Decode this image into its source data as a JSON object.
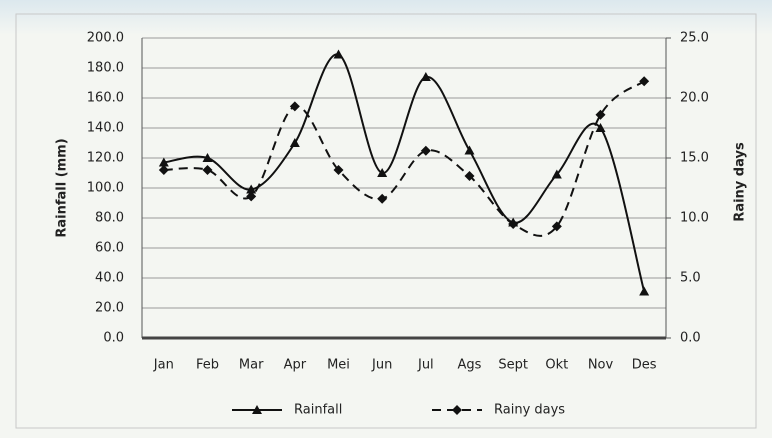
{
  "chart_data": {
    "type": "line",
    "categories": [
      "Jan",
      "Feb",
      "Mar",
      "Apr",
      "Mei",
      "Jun",
      "Jul",
      "Ags",
      "Sept",
      "Okt",
      "Nov",
      "Des"
    ],
    "ylabel": "Rainfall (mm)",
    "y2label": "Rainy days",
    "ylim": [
      0,
      200
    ],
    "yticks": [
      {
        "value": 0,
        "label": "0.0"
      },
      {
        "value": 20,
        "label": "20.0"
      },
      {
        "value": 40,
        "label": "40.0"
      },
      {
        "value": 60,
        "label": "60.0"
      },
      {
        "value": 80,
        "label": "80.0"
      },
      {
        "value": 100,
        "label": "100.0"
      },
      {
        "value": 120,
        "label": "120.0"
      },
      {
        "value": 140,
        "label": "140.0"
      },
      {
        "value": 160,
        "label": "160.0"
      },
      {
        "value": 180,
        "label": "180.0"
      },
      {
        "value": 200,
        "label": "200.0"
      }
    ],
    "y2lim": [
      0,
      25
    ],
    "y2ticks": [
      {
        "value": 0,
        "label": "0.0"
      },
      {
        "value": 5,
        "label": "5.0"
      },
      {
        "value": 10,
        "label": "10.0"
      },
      {
        "value": 15,
        "label": "15.0"
      },
      {
        "value": 20,
        "label": "20.0"
      },
      {
        "value": 25,
        "label": "25.0"
      }
    ],
    "grid": true,
    "legend": "bottom",
    "series": [
      {
        "name": "Rainfall",
        "color": "#111111",
        "marker": "triangle",
        "dash": false,
        "values": [
          117,
          120,
          99,
          130,
          189,
          110,
          174,
          125,
          77,
          109,
          140,
          31
        ]
      },
      {
        "name": "Rainy days",
        "color": "#111111",
        "marker": "diamond",
        "dash": true,
        "axis": "y2",
        "values": [
          14.0,
          14.0,
          11.8,
          19.3,
          14.0,
          11.6,
          15.6,
          13.5,
          9.5,
          9.3,
          18.6,
          21.4
        ]
      }
    ]
  }
}
